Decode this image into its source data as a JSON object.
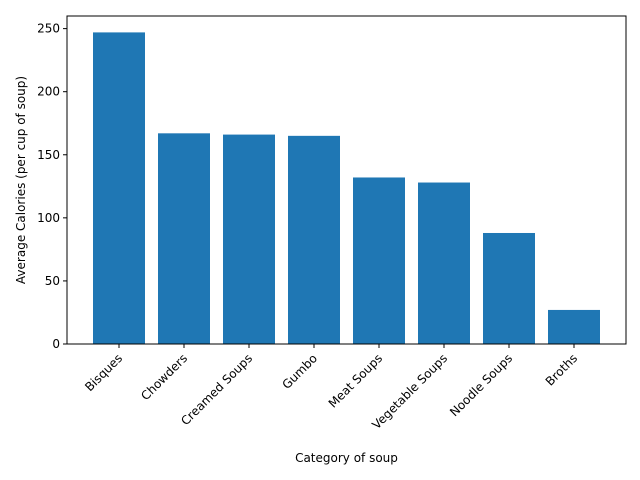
{
  "chart_data": {
    "type": "bar",
    "title": "",
    "xlabel": "Category of soup",
    "ylabel": "Average Calories (per cup of soup)",
    "categories": [
      "Bisques",
      "Chowders",
      "Creamed Soups",
      "Gumbo",
      "Meat Soups",
      "Vegetable Soups",
      "Noodle Soups",
      "Broths"
    ],
    "values": [
      247,
      167,
      166,
      165,
      132,
      128,
      88,
      27
    ],
    "ylim": [
      0,
      260
    ],
    "yticks": [
      0,
      50,
      100,
      150,
      200,
      250
    ],
    "grid": false,
    "legend": "none",
    "bar_color": "#1f77b4"
  }
}
